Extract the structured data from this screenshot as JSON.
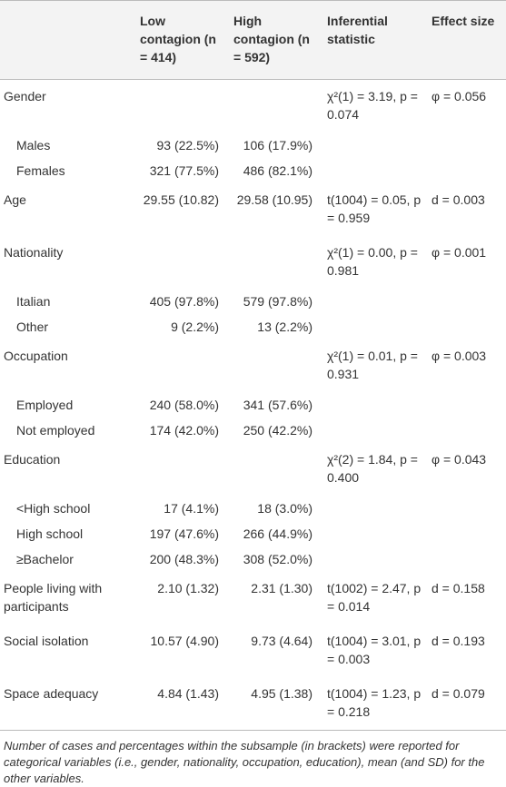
{
  "table": {
    "columns": [
      "",
      "Low contagion (n = 414)",
      "High contagion (n = 592)",
      "Inferential statistic",
      "Effect size"
    ],
    "groups": [
      {
        "label": "Gender",
        "stat": "χ²(1) = 3.19, p = 0.074",
        "effect": "φ = 0.056",
        "items": [
          {
            "label": "Males",
            "low": "93 (22.5%)",
            "high": "106 (17.9%)"
          },
          {
            "label": "Females",
            "low": "321 (77.5%)",
            "high": "486 (82.1%)"
          }
        ]
      },
      {
        "label": "Age",
        "low": "29.55 (10.82)",
        "high": "29.58 (10.95)",
        "stat": "t(1004) = 0.05, p = 0.959",
        "effect": "d = 0.003"
      },
      {
        "label": "Nationality",
        "stat": "χ²(1) = 0.00, p = 0.981",
        "effect": "φ = 0.001",
        "items": [
          {
            "label": "Italian",
            "low": "405 (97.8%)",
            "high": "579 (97.8%)"
          },
          {
            "label": "Other",
            "low": "9 (2.2%)",
            "high": "13 (2.2%)"
          }
        ]
      },
      {
        "label": "Occupation",
        "stat": "χ²(1) = 0.01, p = 0.931",
        "effect": "φ = 0.003",
        "items": [
          {
            "label": "Employed",
            "low": "240 (58.0%)",
            "high": "341 (57.6%)"
          },
          {
            "label": "Not employed",
            "low": "174 (42.0%)",
            "high": "250 (42.2%)"
          }
        ]
      },
      {
        "label": "Education",
        "stat": "χ²(2) = 1.84, p = 0.400",
        "effect": "φ = 0.043",
        "items": [
          {
            "label": "<High school",
            "low": "17 (4.1%)",
            "high": "18 (3.0%)"
          },
          {
            "label": "High school",
            "low": "197 (47.6%)",
            "high": "266 (44.9%)"
          },
          {
            "label": "≥Bachelor",
            "low": "200 (48.3%)",
            "high": "308 (52.0%)"
          }
        ]
      },
      {
        "label": "People living with participants",
        "low": "2.10 (1.32)",
        "high": "2.31 (1.30)",
        "stat": "t(1002) = 2.47, p = 0.014",
        "effect": "d = 0.158"
      },
      {
        "label": "Social isolation",
        "low": "10.57 (4.90)",
        "high": "9.73 (4.64)",
        "stat": "t(1004) = 3.01, p = 0.003",
        "effect": "d = 0.193"
      },
      {
        "label": "Space adequacy",
        "low": "4.84 (1.43)",
        "high": "4.95 (1.38)",
        "stat": "t(1004) = 1.23, p = 0.218",
        "effect": "d = 0.079"
      }
    ]
  },
  "footnote": "Number of cases and percentages within the subsample (in brackets) were reported for categorical variables (i.e., gender, nationality, occupation, education), mean (and SD) for the other variables."
}
